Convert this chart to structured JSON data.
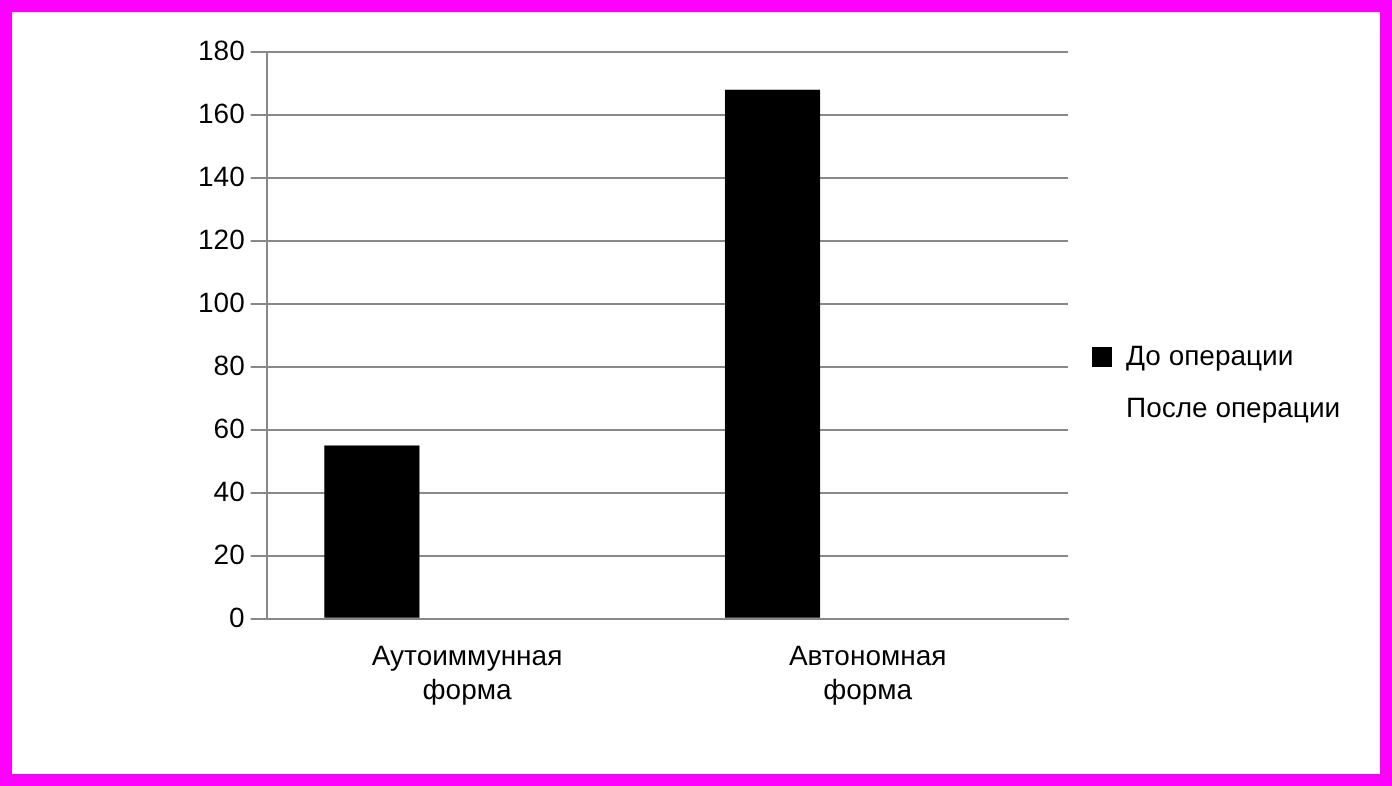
{
  "chart_data": {
    "type": "bar",
    "categories": [
      "Аутоиммунная форма",
      "Автономная форма"
    ],
    "series": [
      {
        "name": "До операции",
        "color": "#000000",
        "values": [
          55,
          168
        ]
      },
      {
        "name": "После операции",
        "values": [
          null,
          null
        ]
      }
    ],
    "ylim": [
      0,
      180
    ],
    "yticks": [
      0,
      20,
      40,
      60,
      80,
      100,
      120,
      140,
      160,
      180
    ],
    "grid": "y",
    "legend": "right"
  }
}
